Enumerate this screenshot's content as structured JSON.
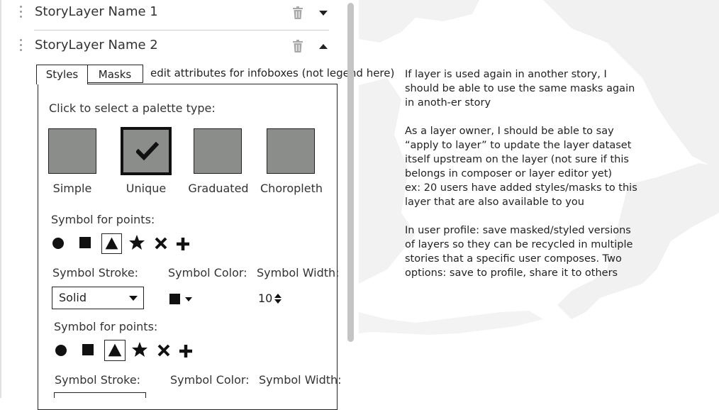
{
  "layers": [
    {
      "name": "StoryLayer Name 1",
      "expanded": false
    },
    {
      "name": "StoryLayer Name 2",
      "expanded": true
    }
  ],
  "tabs": [
    {
      "label": "Styles",
      "active": true
    },
    {
      "label": "Masks",
      "active": false
    }
  ],
  "tab_note": "edit attributes for infoboxes (not legend here)",
  "styles": {
    "palette_prompt": "Click to select a palette type:",
    "palettes": [
      {
        "label": "Simple",
        "selected": false
      },
      {
        "label": "Unique",
        "selected": true
      },
      {
        "label": "Graduated",
        "selected": false
      },
      {
        "label": "Choropleth",
        "selected": false
      }
    ],
    "symbol_sections": [
      {
        "label": "Symbol for points:",
        "symbols": [
          "circle-icon",
          "square-icon",
          "triangle-icon",
          "star-icon",
          "x-icon",
          "plus-icon"
        ],
        "selected_symbol": "triangle-icon",
        "stroke_label": "Symbol Stroke:",
        "stroke_value": "Solid",
        "color_label": "Symbol Color:",
        "color_value": "#111111",
        "width_label": "Symbol Width:",
        "width_value": "10"
      },
      {
        "label": "Symbol for points:",
        "symbols": [
          "circle-icon",
          "square-icon",
          "triangle-icon",
          "star-icon",
          "x-icon",
          "plus-icon"
        ],
        "selected_symbol": "triangle-icon",
        "stroke_label": "Symbol Stroke:",
        "color_label": "Symbol Color:",
        "width_label": "Symbol Width:"
      }
    ]
  },
  "notes": [
    "If layer is used again in another story, I should be able to use the same masks again in anoth-er story",
    "As a layer owner, I should be able to say “apply to layer” to update the layer dataset itself upstream on the layer (not sure if this belongs in composer or layer editor yet)\nex: 20 users have added styles/masks to this layer that are also available to you",
    "In user profile: save masked/styled versions of layers so they can be recycled in multiple stories that a specific user composes. Two options: save to profile, share it to others"
  ],
  "colors": {
    "swatch_fill": "#8b8d8b",
    "map_land": "#f3f3f3",
    "map_water": "#ffffff"
  }
}
